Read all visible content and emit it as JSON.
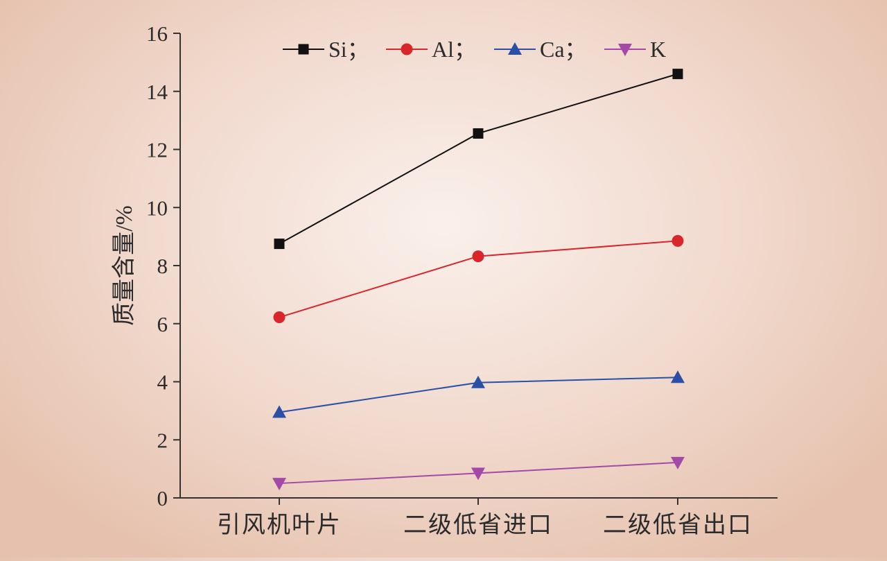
{
  "chart_data": {
    "type": "line",
    "title": "",
    "xlabel": "",
    "ylabel": "质量含量/%",
    "ylim": [
      0,
      16
    ],
    "yticks": [
      0,
      2,
      4,
      6,
      8,
      10,
      12,
      14,
      16
    ],
    "grid": false,
    "legend_position": "top",
    "categories": [
      "引风机叶片",
      "二级低省进口",
      "二级低省出口"
    ],
    "series": [
      {
        "name": "Si",
        "legend_label": "Si；",
        "color": "#111111",
        "marker": "square",
        "values": [
          8.75,
          12.55,
          14.6
        ]
      },
      {
        "name": "Al",
        "legend_label": "Al；",
        "color": "#d9262b",
        "marker": "circle",
        "values": [
          6.22,
          8.32,
          8.85
        ]
      },
      {
        "name": "Ca",
        "legend_label": "Ca；",
        "color": "#2a50a6",
        "marker": "triangle-up",
        "values": [
          2.95,
          3.97,
          4.15
        ]
      },
      {
        "name": "K",
        "legend_label": "K",
        "color": "#a34aa8",
        "marker": "triangle-down",
        "values": [
          0.5,
          0.85,
          1.22
        ]
      }
    ]
  }
}
